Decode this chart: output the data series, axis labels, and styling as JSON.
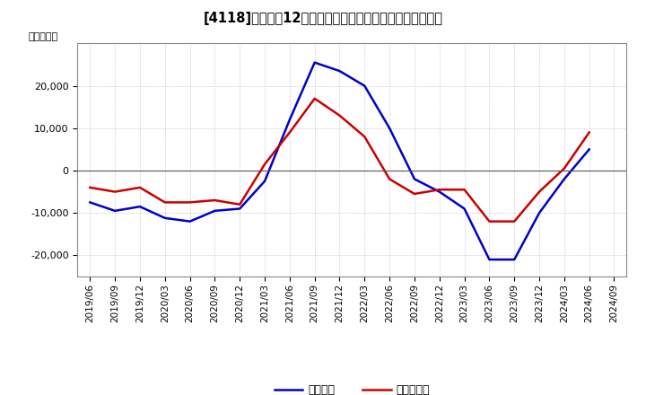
{
  "title": "[4118]　利益の12か月移動合計の対前年同期増減額の推移",
  "ylabel": "（百万円）",
  "background_color": "#ffffff",
  "plot_background": "#ffffff",
  "grid_color": "#aaaaaa",
  "x_labels": [
    "2019/06",
    "2019/09",
    "2019/12",
    "2020/03",
    "2020/06",
    "2020/09",
    "2020/12",
    "2021/03",
    "2021/06",
    "2021/09",
    "2021/12",
    "2022/03",
    "2022/06",
    "2022/09",
    "2022/12",
    "2023/03",
    "2023/06",
    "2023/09",
    "2023/12",
    "2024/03",
    "2024/06",
    "2024/09"
  ],
  "keijo_rieki": [
    -7500,
    -9500,
    -8500,
    -11200,
    -12000,
    -9500,
    -9000,
    -2500,
    12000,
    25500,
    23500,
    20000,
    10000,
    -2000,
    -5000,
    -9000,
    -21000,
    -21000,
    -10000,
    -2000,
    5000,
    null
  ],
  "touki_jun_rieki": [
    -4000,
    -5000,
    -4000,
    -7500,
    -7500,
    -7000,
    -8000,
    1500,
    9000,
    17000,
    13000,
    8000,
    -2000,
    -5500,
    -4500,
    -4500,
    -12000,
    -12000,
    -5000,
    500,
    9000,
    null
  ],
  "keijo_color": "#0000cc",
  "touki_color": "#cc0000",
  "ylim": [
    -25000,
    30000
  ],
  "yticks": [
    -20000,
    -10000,
    0,
    10000,
    20000
  ],
  "legend_keijo": "経常利益",
  "legend_touki": "当期純利益",
  "line_width": 1.8
}
